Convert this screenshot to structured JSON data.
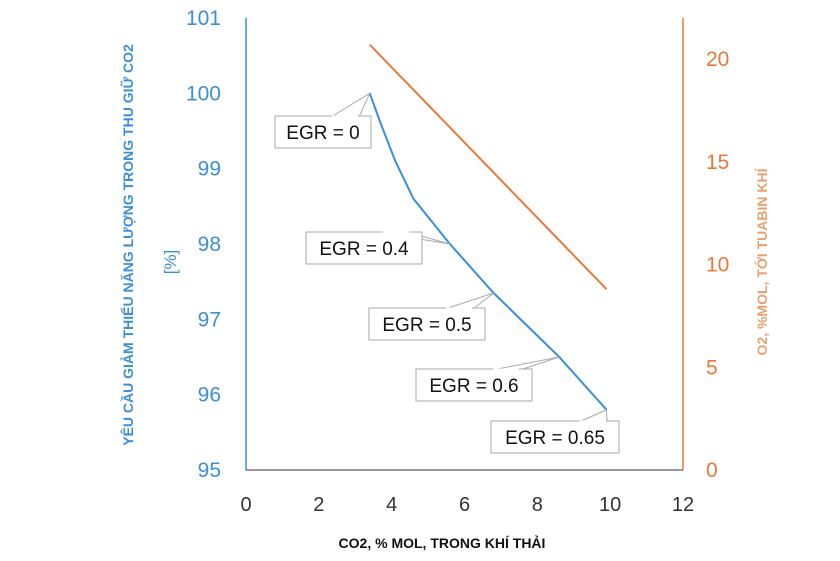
{
  "chart_data": {
    "type": "line",
    "xlabel": "CO2, % MOL, TRONG KHÍ THẢI",
    "ylabel_left": "YÊU CẦU GIẢM THIỂU NĂNG LƯỢNG TRONG THU GIỮ CO2",
    "ylabel_left_unit": "[%]",
    "ylabel_right": "O2, %MOL, TỚI TUABIN KHÍ",
    "xlim": [
      0,
      12
    ],
    "ylim_left": [
      95,
      101
    ],
    "ylim_right": [
      0,
      22
    ],
    "x_ticks": [
      "0",
      "2",
      "4",
      "6",
      "8",
      "10",
      "12"
    ],
    "y_left_ticks": [
      "95",
      "96",
      "97",
      "98",
      "99",
      "100",
      "101"
    ],
    "y_right_ticks": [
      "0",
      "5",
      "10",
      "15",
      "20"
    ],
    "grid": false,
    "colors": {
      "left": "#3a8fd8",
      "right": "#e8793a"
    },
    "series": [
      {
        "axis": "left",
        "x": [
          3.4,
          3.7,
          4.1,
          4.6,
          5.6,
          6.8,
          8.6,
          9.9
        ],
        "y": [
          100.0,
          99.6,
          99.1,
          98.6,
          98.0,
          97.35,
          96.5,
          95.8
        ]
      },
      {
        "axis": "right",
        "x": [
          3.4,
          9.9
        ],
        "y": [
          20.7,
          8.8
        ]
      }
    ],
    "annotations": [
      {
        "text": "EGR = 0",
        "x": 3.4,
        "y": 100.0
      },
      {
        "text": "EGR = 0.4",
        "x": 5.6,
        "y": 98.0
      },
      {
        "text": "EGR = 0.5",
        "x": 6.8,
        "y": 97.35
      },
      {
        "text": "EGR = 0.6",
        "x": 8.6,
        "y": 96.5
      },
      {
        "text": "EGR = 0.65",
        "x": 9.9,
        "y": 95.8
      }
    ]
  }
}
